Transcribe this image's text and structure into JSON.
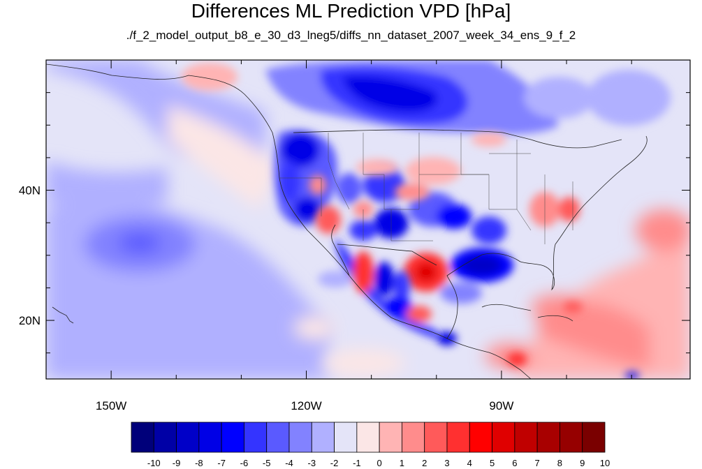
{
  "title": "Differences ML Prediction VPD [hPa]",
  "subtitle": "./f_2_model_output_b8_e_30_d3_lneg5/diffs_nn_dataset_2007_week_34_ens_9_f_2",
  "map": {
    "lon_range": [
      -160,
      -61
    ],
    "lat_range": [
      11,
      60
    ],
    "lon_ticks": [
      {
        "value": -150,
        "label": "150W"
      },
      {
        "value": -120,
        "label": "120W"
      },
      {
        "value": -90,
        "label": "90W"
      }
    ],
    "lat_ticks": [
      {
        "value": 40,
        "label": "40N"
      },
      {
        "value": 20,
        "label": "20N"
      }
    ]
  },
  "colorbar": {
    "labels": [
      "-10",
      "-9",
      "-8",
      "-7",
      "-6",
      "-5",
      "-4",
      "-3",
      "-2",
      "-1",
      "0",
      "1",
      "2",
      "3",
      "4",
      "5",
      "6",
      "7",
      "8",
      "9",
      "10"
    ],
    "colors": [
      "#00007a",
      "#0000a6",
      "#0000c8",
      "#0000e6",
      "#0000ff",
      "#3434ff",
      "#5a5aff",
      "#8282ff",
      "#b0b0ff",
      "#e4e4f8",
      "#fbe6e6",
      "#ffb4b4",
      "#ff8c8c",
      "#ff5a5a",
      "#ff3030",
      "#ff0000",
      "#e00000",
      "#c00000",
      "#a80000",
      "#960000",
      "#7a0000"
    ]
  }
}
